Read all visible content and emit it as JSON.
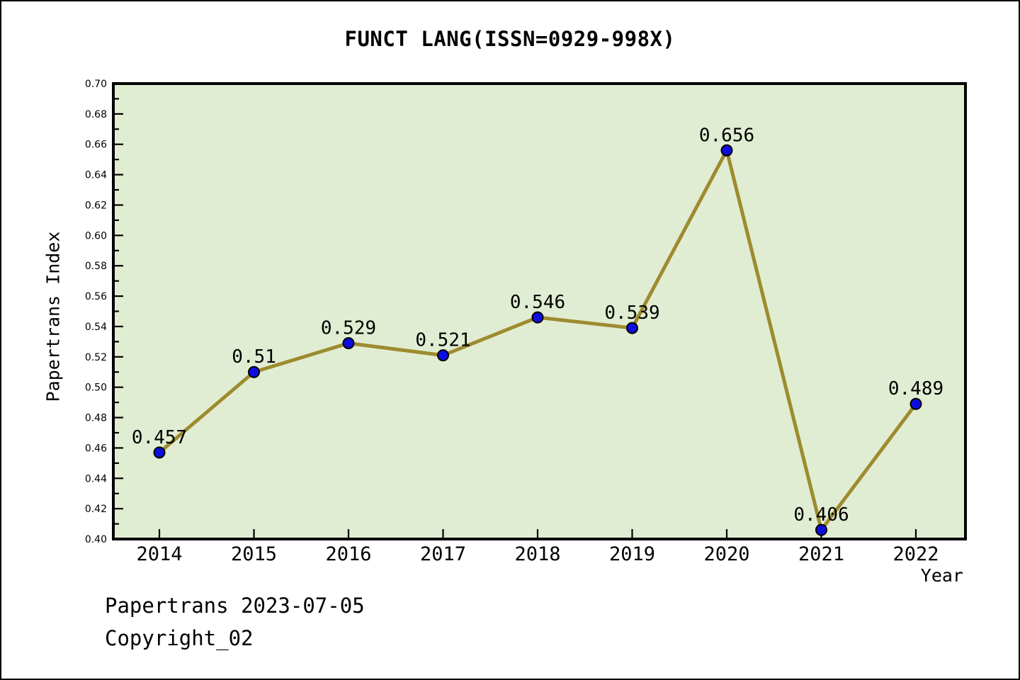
{
  "title": "FUNCT LANG(ISSN=0929-998X)",
  "footer": {
    "line1": "Papertrans 2023-07-05",
    "line2": "Copyright_02"
  },
  "chart_data": {
    "type": "line",
    "title": "FUNCT LANG(ISSN=0929-998X)",
    "xlabel": "Year",
    "ylabel": "Papertrans Index",
    "x": [
      2014,
      2015,
      2016,
      2017,
      2018,
      2019,
      2020,
      2021,
      2022
    ],
    "values": [
      0.457,
      0.51,
      0.529,
      0.521,
      0.546,
      0.539,
      0.656,
      0.406,
      0.489
    ],
    "point_labels": [
      "0.457",
      "0.51",
      "0.529",
      "0.521",
      "0.546",
      "0.539",
      "0.656",
      "0.406",
      "0.489"
    ],
    "xtick_labels": [
      "2014",
      "2015",
      "2016",
      "2017",
      "2018",
      "2019",
      "2020",
      "2021",
      "2022"
    ],
    "ylim": [
      0.4,
      0.7
    ],
    "ytick_major_step": 0.02,
    "ytick_minor_step": 0.01,
    "grid": false,
    "marker": "circle",
    "colors": {
      "line": "#9d8b2f",
      "marker_fill": "#0d0de0",
      "marker_edge": "#000000",
      "plot_bg": "#e1edd2",
      "axis": "#000000",
      "text": "#000000",
      "page_bg": "#ffffff"
    }
  }
}
